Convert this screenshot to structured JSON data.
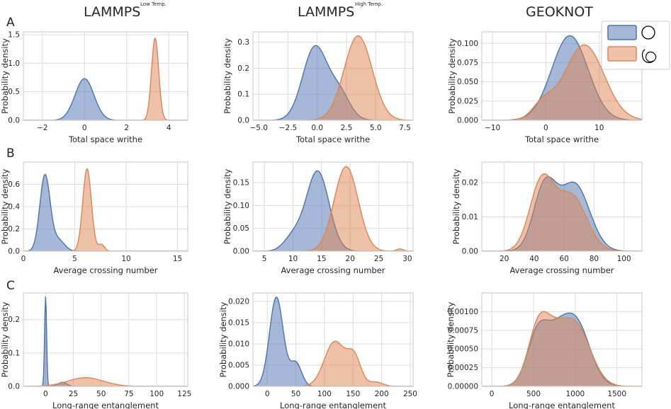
{
  "column_titles": [
    {
      "main": "LAMMPS",
      "sup": "Low Temp."
    },
    {
      "main": "LAMMPS",
      "sup": "High Temp."
    },
    {
      "main": "GEOKNOT",
      "sup": ""
    }
  ],
  "row_letters": [
    "A",
    "B",
    "C"
  ],
  "legend": {
    "entries": [
      {
        "name": "unknot",
        "color": "#4C72B0",
        "icon": "circle-unknot-icon"
      },
      {
        "name": "knot",
        "color": "#DD8452",
        "icon": "knot-icon"
      }
    ]
  },
  "colors": {
    "blue": "#4C72B0",
    "orange": "#DD8452",
    "grid": "#dcdcdc",
    "frame": "#cfcfcf"
  },
  "chart_data": [
    {
      "type": "area",
      "row": 0,
      "col": 0,
      "title": "LAMMPS Low Temp.",
      "xlabel": "Total space writhe",
      "ylabel": "Probability density",
      "xlim": [
        -2.9,
        4.9
      ],
      "ylim": [
        0,
        1.55
      ],
      "xticks": [
        -2,
        0,
        2,
        4
      ],
      "yticks": [
        0.0,
        0.5,
        1.0,
        1.5
      ],
      "ydec": 1,
      "series": [
        {
          "name": "unknot",
          "color": "#4C72B0",
          "components": [
            {
              "mu": 0.0,
              "sigma": 0.45,
              "amp": 0.73
            }
          ]
        },
        {
          "name": "knot",
          "color": "#DD8452",
          "components": [
            {
              "mu": 3.35,
              "sigma": 0.17,
              "amp": 1.44
            }
          ]
        }
      ]
    },
    {
      "type": "area",
      "row": 0,
      "col": 1,
      "title": "LAMMPS High Temp.",
      "xlabel": "Total space writhe",
      "ylabel": "Probability density",
      "xlim": [
        -5.5,
        8.2
      ],
      "ylim": [
        0,
        0.34
      ],
      "xticks": [
        -5.0,
        -2.5,
        0.0,
        2.5,
        5.0,
        7.5
      ],
      "yticks": [
        0.0,
        0.1,
        0.2,
        0.3
      ],
      "ydec": 1,
      "series": [
        {
          "name": "unknot",
          "color": "#4C72B0",
          "components": [
            {
              "mu": -0.2,
              "sigma": 1.05,
              "amp": 0.28
            },
            {
              "mu": 1.9,
              "sigma": 0.9,
              "amp": 0.1
            }
          ]
        },
        {
          "name": "knot",
          "color": "#DD8452",
          "components": [
            {
              "mu": 3.5,
              "sigma": 1.2,
              "amp": 0.325
            }
          ]
        }
      ]
    },
    {
      "type": "area",
      "row": 0,
      "col": 2,
      "title": "GEOKNOT",
      "xlabel": "Total space writhe",
      "ylabel": "Probability density",
      "xlim": [
        -12,
        18
      ],
      "ylim": [
        0,
        0.115
      ],
      "xticks": [
        -10,
        0,
        10
      ],
      "yticks": [
        0.0,
        0.025,
        0.05,
        0.075,
        0.1
      ],
      "ydec": 3,
      "series": [
        {
          "name": "unknot",
          "color": "#4C72B0",
          "components": [
            {
              "mu": 4.5,
              "sigma": 3.4,
              "amp": 0.11
            }
          ]
        },
        {
          "name": "knot",
          "color": "#DD8452",
          "components": [
            {
              "mu": 7.2,
              "sigma": 3.7,
              "amp": 0.098
            },
            {
              "mu": -0.5,
              "sigma": 2.0,
              "amp": 0.02
            }
          ]
        }
      ]
    },
    {
      "type": "area",
      "row": 1,
      "col": 0,
      "title": "LAMMPS Low Temp.",
      "xlabel": "Average crossing number",
      "ylabel": "Probability density",
      "xlim": [
        0,
        16
      ],
      "ylim": [
        0,
        0.8
      ],
      "xticks": [
        0,
        5,
        10,
        15
      ],
      "yticks": [
        0.0,
        0.2,
        0.4,
        0.6
      ],
      "ydec": 1,
      "series": [
        {
          "name": "unknot",
          "color": "#4C72B0",
          "components": [
            {
              "mu": 2.1,
              "sigma": 0.5,
              "amp": 0.68
            },
            {
              "mu": 3.4,
              "sigma": 0.6,
              "amp": 0.1
            }
          ]
        },
        {
          "name": "knot",
          "color": "#DD8452",
          "components": [
            {
              "mu": 6.2,
              "sigma": 0.42,
              "amp": 0.74
            },
            {
              "mu": 7.6,
              "sigma": 0.3,
              "amp": 0.06
            }
          ]
        }
      ]
    },
    {
      "type": "area",
      "row": 1,
      "col": 1,
      "title": "LAMMPS High Temp.",
      "xlabel": "Average crossing number",
      "ylabel": "Probability density",
      "xlim": [
        3,
        31
      ],
      "ylim": [
        0,
        0.195
      ],
      "xticks": [
        5,
        10,
        15,
        20,
        25,
        30
      ],
      "yticks": [
        0.0,
        0.05,
        0.1,
        0.15
      ],
      "ydec": 2,
      "series": [
        {
          "name": "unknot",
          "color": "#4C72B0",
          "components": [
            {
              "mu": 14.3,
              "sigma": 2.0,
              "amp": 0.175
            },
            {
              "mu": 10.0,
              "sigma": 1.6,
              "amp": 0.03
            }
          ]
        },
        {
          "name": "knot",
          "color": "#DD8452",
          "components": [
            {
              "mu": 19.3,
              "sigma": 2.1,
              "amp": 0.185
            },
            {
              "mu": 28.7,
              "sigma": 0.6,
              "amp": 0.005
            }
          ]
        }
      ]
    },
    {
      "type": "area",
      "row": 1,
      "col": 2,
      "title": "GEOKNOT",
      "xlabel": "Average crossing number",
      "ylabel": "Probability density",
      "xlim": [
        5,
        112
      ],
      "ylim": [
        0,
        0.026
      ],
      "xticks": [
        20,
        40,
        60,
        80,
        100
      ],
      "yticks": [
        0.0,
        0.01,
        0.02
      ],
      "ydec": 2,
      "series": [
        {
          "name": "unknot",
          "color": "#4C72B0",
          "components": [
            {
              "mu": 47.0,
              "sigma": 7.5,
              "amp": 0.0185
            },
            {
              "mu": 67.0,
              "sigma": 10.0,
              "amp": 0.0195
            }
          ]
        },
        {
          "name": "knot",
          "color": "#DD8452",
          "components": [
            {
              "mu": 45.0,
              "sigma": 8.0,
              "amp": 0.02
            },
            {
              "mu": 65.0,
              "sigma": 10.0,
              "amp": 0.016
            }
          ]
        }
      ]
    },
    {
      "type": "area",
      "row": 2,
      "col": 0,
      "title": "LAMMPS Low Temp.",
      "xlabel": "Long-range entanglement",
      "ylabel": "Probability density",
      "xlim": [
        -20,
        128
      ],
      "ylim": [
        0,
        0.28
      ],
      "xticks": [
        0,
        25,
        50,
        75,
        100,
        125
      ],
      "yticks": [
        0.0,
        0.1,
        0.2
      ],
      "ydec": 1,
      "series": [
        {
          "name": "unknot",
          "color": "#4C72B0",
          "components": [
            {
              "mu": 0.0,
              "sigma": 0.9,
              "amp": 0.27
            },
            {
              "mu": 15.0,
              "sigma": 4.0,
              "amp": 0.012
            }
          ]
        },
        {
          "name": "knot",
          "color": "#DD8452",
          "components": [
            {
              "mu": 36.0,
              "sigma": 16.0,
              "amp": 0.026
            }
          ]
        }
      ]
    },
    {
      "type": "area",
      "row": 2,
      "col": 1,
      "title": "LAMMPS High Temp.",
      "xlabel": "Long-range entanglement",
      "ylabel": "Probability density",
      "xlim": [
        -25,
        255
      ],
      "ylim": [
        0,
        0.022
      ],
      "xticks": [
        0,
        50,
        100,
        150,
        200,
        250
      ],
      "yticks": [
        0.0,
        0.005,
        0.01,
        0.015,
        0.02
      ],
      "ydec": 3,
      "series": [
        {
          "name": "unknot",
          "color": "#4C72B0",
          "components": [
            {
              "mu": 16.0,
              "sigma": 12.0,
              "amp": 0.021
            },
            {
              "mu": 50.0,
              "sigma": 10.0,
              "amp": 0.0055
            }
          ]
        },
        {
          "name": "knot",
          "color": "#DD8452",
          "components": [
            {
              "mu": 118.0,
              "sigma": 18.0,
              "amp": 0.0105
            },
            {
              "mu": 152.0,
              "sigma": 12.0,
              "amp": 0.0065
            },
            {
              "mu": 190.0,
              "sigma": 12.0,
              "amp": 0.001
            }
          ]
        }
      ]
    },
    {
      "type": "area",
      "row": 2,
      "col": 2,
      "title": "GEOKNOT",
      "xlabel": "Long-range entanglement",
      "ylabel": "Probability density",
      "xlim": [
        -120,
        1800
      ],
      "ylim": [
        0,
        0.00125
      ],
      "xticks": [
        0,
        500,
        1000,
        1500
      ],
      "yticks": [
        0.0,
        0.00025,
        0.0005,
        0.00075,
        0.001
      ],
      "ydec": 5,
      "series": [
        {
          "name": "unknot",
          "color": "#4C72B0",
          "components": [
            {
              "mu": 560.0,
              "sigma": 130.0,
              "amp": 0.00075
            },
            {
              "mu": 1000.0,
              "sigma": 170.0,
              "amp": 0.00088
            },
            {
              "mu": 780.0,
              "sigma": 120.0,
              "amp": 0.00035
            }
          ]
        },
        {
          "name": "knot",
          "color": "#DD8452",
          "components": [
            {
              "mu": 570.0,
              "sigma": 130.0,
              "amp": 0.00085
            },
            {
              "mu": 1000.0,
              "sigma": 180.0,
              "amp": 0.00082
            },
            {
              "mu": 780.0,
              "sigma": 120.0,
              "amp": 0.0003
            }
          ]
        }
      ]
    }
  ]
}
